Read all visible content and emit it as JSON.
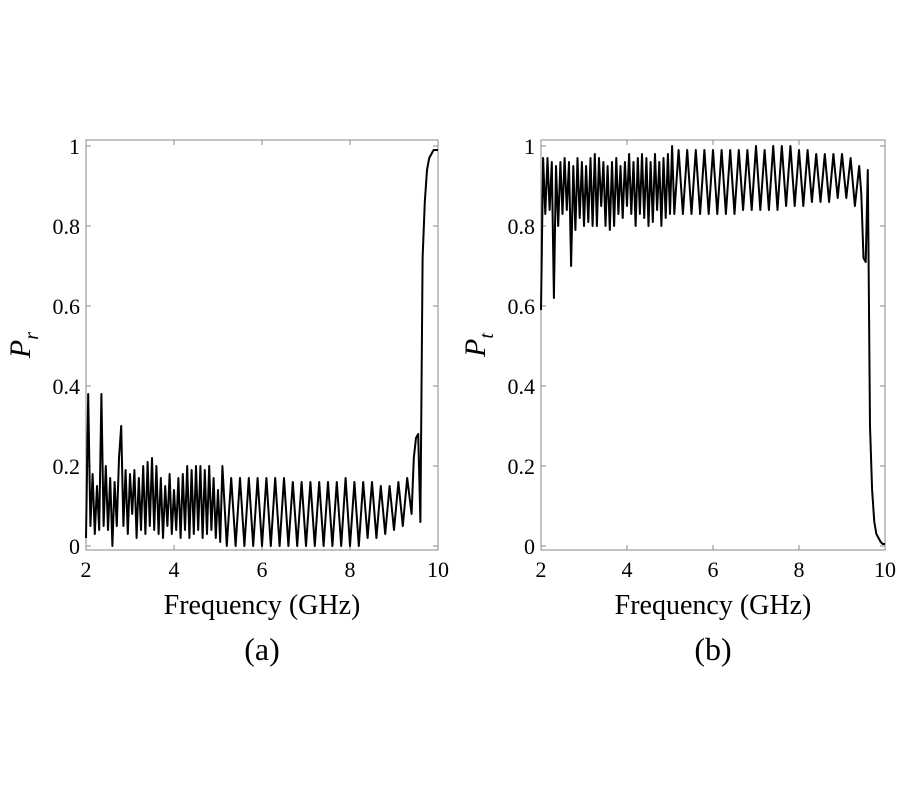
{
  "chart_data": [
    {
      "type": "line",
      "panel_label": "(a)",
      "xlabel": "Frequency (GHz)",
      "ylabel_symbol": "P",
      "ylabel_subscript": "r",
      "xlim": [
        2,
        10
      ],
      "ylim": [
        0,
        1
      ],
      "xticks": [
        2,
        4,
        6,
        8,
        10
      ],
      "yticks": [
        0,
        0.2,
        0.4,
        0.6,
        0.8,
        1
      ],
      "ytick_labels": [
        "0",
        "0.2",
        "0.4",
        "0.6",
        "0.8",
        "1"
      ],
      "grid": false,
      "line_color": "#000000",
      "series": [
        {
          "x": [
            2.0,
            2.05,
            2.1,
            2.15,
            2.2,
            2.25,
            2.3,
            2.35,
            2.4,
            2.45,
            2.5,
            2.55,
            2.6,
            2.65,
            2.7,
            2.75,
            2.8,
            2.85,
            2.9,
            2.95,
            3.0,
            3.05,
            3.1,
            3.15,
            3.2,
            3.25,
            3.3,
            3.35,
            3.4,
            3.45,
            3.5,
            3.55,
            3.6,
            3.65,
            3.7,
            3.75,
            3.8,
            3.85,
            3.9,
            3.95,
            4.0,
            4.05,
            4.1,
            4.15,
            4.2,
            4.25,
            4.3,
            4.35,
            4.4,
            4.45,
            4.5,
            4.55,
            4.6,
            4.65,
            4.7,
            4.75,
            4.8,
            4.85,
            4.9,
            4.95,
            5.0,
            5.05,
            5.1,
            5.2,
            5.3,
            5.4,
            5.5,
            5.6,
            5.7,
            5.8,
            5.9,
            6.0,
            6.1,
            6.2,
            6.3,
            6.4,
            6.5,
            6.6,
            6.7,
            6.8,
            6.9,
            7.0,
            7.1,
            7.2,
            7.3,
            7.4,
            7.5,
            7.6,
            7.7,
            7.8,
            7.9,
            8.0,
            8.1,
            8.2,
            8.3,
            8.4,
            8.5,
            8.6,
            8.7,
            8.8,
            8.9,
            9.0,
            9.1,
            9.2,
            9.3,
            9.4,
            9.45,
            9.5,
            9.55,
            9.6,
            9.65,
            9.7,
            9.75,
            9.8,
            9.85,
            9.9,
            9.95,
            10.0
          ],
          "y": [
            0.02,
            0.38,
            0.05,
            0.18,
            0.03,
            0.15,
            0.04,
            0.38,
            0.05,
            0.2,
            0.04,
            0.17,
            0.0,
            0.16,
            0.05,
            0.22,
            0.3,
            0.05,
            0.19,
            0.03,
            0.18,
            0.08,
            0.19,
            0.02,
            0.17,
            0.04,
            0.2,
            0.03,
            0.21,
            0.05,
            0.22,
            0.04,
            0.2,
            0.03,
            0.17,
            0.02,
            0.15,
            0.05,
            0.18,
            0.03,
            0.14,
            0.04,
            0.17,
            0.02,
            0.18,
            0.04,
            0.2,
            0.02,
            0.19,
            0.03,
            0.2,
            0.04,
            0.2,
            0.02,
            0.19,
            0.03,
            0.2,
            0.04,
            0.17,
            0.02,
            0.14,
            0.01,
            0.2,
            0.0,
            0.17,
            0.0,
            0.17,
            0.0,
            0.17,
            0.0,
            0.17,
            0.0,
            0.17,
            0.0,
            0.17,
            0.0,
            0.17,
            0.0,
            0.16,
            0.0,
            0.16,
            0.0,
            0.16,
            0.0,
            0.16,
            0.0,
            0.16,
            0.0,
            0.16,
            0.0,
            0.17,
            0.0,
            0.16,
            0.0,
            0.16,
            0.02,
            0.16,
            0.02,
            0.15,
            0.03,
            0.15,
            0.04,
            0.16,
            0.05,
            0.17,
            0.08,
            0.22,
            0.27,
            0.28,
            0.06,
            0.72,
            0.86,
            0.94,
            0.97,
            0.98,
            0.99,
            0.99,
            0.99
          ]
        }
      ]
    },
    {
      "type": "line",
      "panel_label": "(b)",
      "xlabel": "Frequency (GHz)",
      "ylabel_symbol": "P",
      "ylabel_subscript": "t",
      "xlim": [
        2,
        10
      ],
      "ylim": [
        0,
        1
      ],
      "xticks": [
        2,
        4,
        6,
        8,
        10
      ],
      "yticks": [
        0,
        0.2,
        0.4,
        0.6,
        0.8,
        1
      ],
      "ytick_labels": [
        "0",
        "0.2",
        "0.4",
        "0.6",
        "0.8",
        "1"
      ],
      "grid": false,
      "line_color": "#000000",
      "series": [
        {
          "x": [
            2.0,
            2.05,
            2.1,
            2.15,
            2.2,
            2.25,
            2.3,
            2.35,
            2.4,
            2.45,
            2.5,
            2.55,
            2.6,
            2.65,
            2.7,
            2.75,
            2.8,
            2.85,
            2.9,
            2.95,
            3.0,
            3.05,
            3.1,
            3.15,
            3.2,
            3.25,
            3.3,
            3.35,
            3.4,
            3.45,
            3.5,
            3.55,
            3.6,
            3.65,
            3.7,
            3.75,
            3.8,
            3.85,
            3.9,
            3.95,
            4.0,
            4.05,
            4.1,
            4.15,
            4.2,
            4.25,
            4.3,
            4.35,
            4.4,
            4.45,
            4.5,
            4.55,
            4.6,
            4.65,
            4.7,
            4.75,
            4.8,
            4.85,
            4.9,
            4.95,
            5.0,
            5.05,
            5.1,
            5.2,
            5.3,
            5.4,
            5.5,
            5.6,
            5.7,
            5.8,
            5.9,
            6.0,
            6.1,
            6.2,
            6.3,
            6.4,
            6.5,
            6.6,
            6.7,
            6.8,
            6.9,
            7.0,
            7.1,
            7.2,
            7.3,
            7.4,
            7.5,
            7.6,
            7.7,
            7.8,
            7.9,
            8.0,
            8.1,
            8.2,
            8.3,
            8.4,
            8.5,
            8.6,
            8.7,
            8.8,
            8.9,
            9.0,
            9.1,
            9.2,
            9.3,
            9.4,
            9.45,
            9.5,
            9.55,
            9.6,
            9.65,
            9.7,
            9.75,
            9.8,
            9.85,
            9.9,
            9.95,
            10.0
          ],
          "y": [
            0.59,
            0.97,
            0.83,
            0.97,
            0.84,
            0.96,
            0.62,
            0.95,
            0.8,
            0.96,
            0.83,
            0.97,
            0.84,
            0.96,
            0.7,
            0.95,
            0.79,
            0.97,
            0.82,
            0.96,
            0.8,
            0.95,
            0.81,
            0.97,
            0.8,
            0.98,
            0.8,
            0.97,
            0.85,
            0.96,
            0.8,
            0.95,
            0.79,
            0.96,
            0.8,
            0.97,
            0.83,
            0.95,
            0.82,
            0.96,
            0.85,
            0.98,
            0.83,
            0.96,
            0.8,
            0.97,
            0.83,
            0.98,
            0.82,
            0.97,
            0.8,
            0.96,
            0.81,
            0.98,
            0.84,
            0.96,
            0.8,
            0.97,
            0.82,
            0.98,
            0.83,
            1.0,
            0.83,
            0.99,
            0.83,
            0.99,
            0.83,
            0.99,
            0.83,
            0.99,
            0.83,
            0.99,
            0.83,
            0.99,
            0.83,
            0.99,
            0.83,
            0.99,
            0.84,
            0.99,
            0.84,
            1.0,
            0.84,
            0.99,
            0.84,
            1.0,
            0.84,
            1.0,
            0.85,
            1.0,
            0.85,
            0.99,
            0.85,
            0.99,
            0.86,
            0.98,
            0.86,
            0.98,
            0.86,
            0.98,
            0.87,
            0.98,
            0.87,
            0.97,
            0.85,
            0.95,
            0.88,
            0.72,
            0.71,
            0.94,
            0.3,
            0.14,
            0.06,
            0.03,
            0.02,
            0.01,
            0.005,
            0.005
          ]
        }
      ]
    }
  ]
}
